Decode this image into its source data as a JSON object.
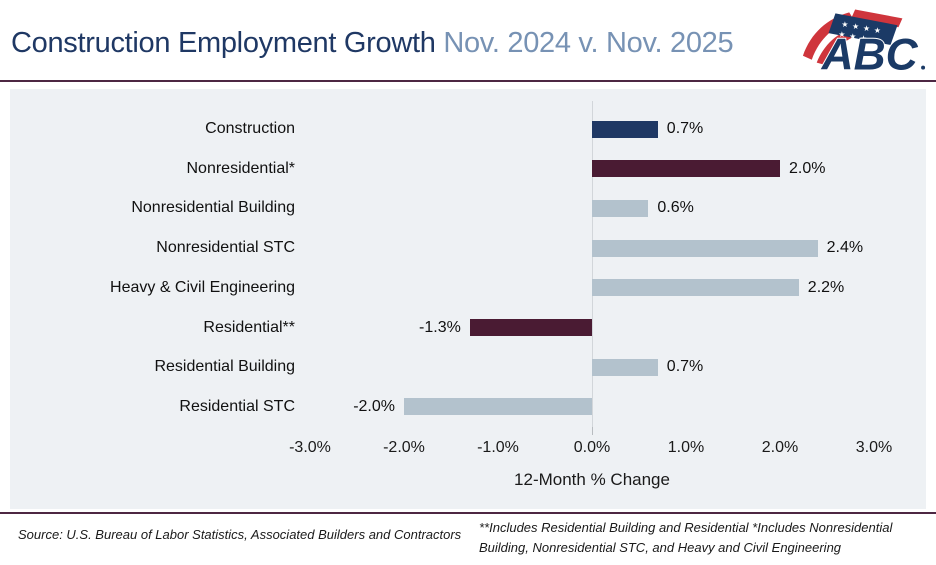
{
  "header": {
    "title_main": "Construction Employment Growth",
    "title_period": "Nov. 2024 v. Nov. 2025",
    "logo_text": "ABC"
  },
  "colors": {
    "title_navy": "#1f3864",
    "title_steel": "#7792b4",
    "rule_maroon": "#4d2743",
    "panel_bg": "#eef1f4",
    "bar_navy": "#1f3864",
    "bar_maroon": "#4a1b33",
    "bar_light": "#b3c2cd",
    "logo_navy": "#1b3a66",
    "logo_red": "#cf353c"
  },
  "chart_data": {
    "type": "bar",
    "orientation": "horizontal",
    "title": "Construction Employment Growth Nov. 2024 v. Nov. 2025",
    "categories": [
      "Construction",
      "Nonresidential*",
      "Nonresidential Building",
      "Nonresidential STC",
      "Heavy & Civil Engineering",
      "Residential**",
      "Residential Building",
      "Residential STC"
    ],
    "values": [
      0.7,
      2.0,
      0.6,
      2.4,
      2.2,
      -1.3,
      0.7,
      -2.0
    ],
    "value_labels": [
      "0.7%",
      "2.0%",
      "0.6%",
      "2.4%",
      "2.2%",
      "-1.3%",
      "0.7%",
      "-2.0%"
    ],
    "bar_styles": [
      "navy",
      "maroon",
      "light",
      "light",
      "light",
      "maroon",
      "light",
      "light"
    ],
    "x_ticks": [
      "-3.0%",
      "-2.0%",
      "-1.0%",
      "0.0%",
      "1.0%",
      "2.0%",
      "3.0%"
    ],
    "x_tick_values": [
      -3,
      -2,
      -1,
      0,
      1,
      2,
      3
    ],
    "xlim": [
      -3,
      3
    ],
    "xlabel": "12-Month % Change",
    "grid": "zero-line-only",
    "legend": "none"
  },
  "footer": {
    "source": "Source: U.S. Bureau of Labor Statistics, Associated Builders and Contractors",
    "note": "**Includes Residential Building and Residential *Includes Nonresidential Building, Nonresidential STC, and Heavy and Civil Engineering"
  }
}
